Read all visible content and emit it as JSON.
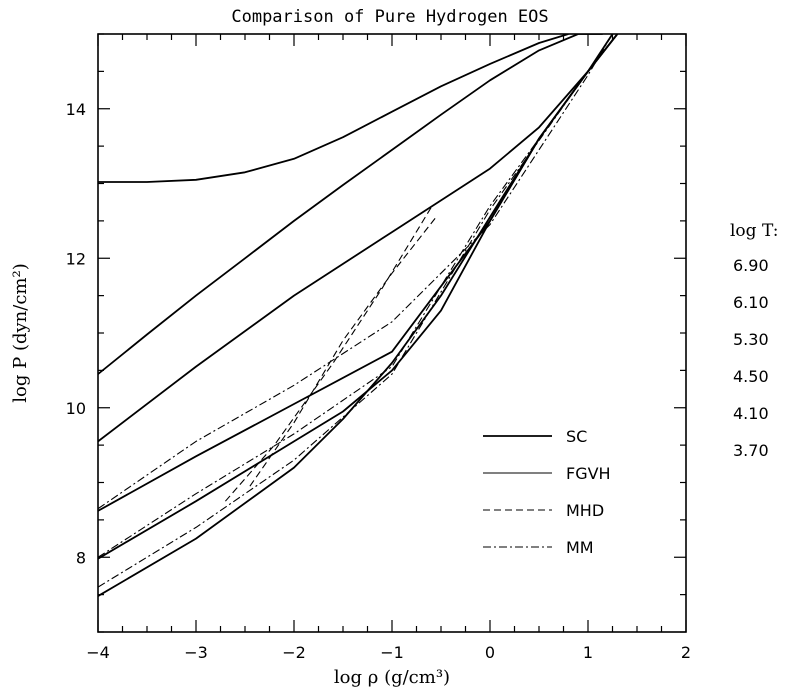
{
  "chart_data": {
    "type": "line",
    "title": "Comparison of Pure Hydrogen EOS",
    "xlabel": "log ρ (g/cm³)",
    "ylabel": "log P (dyn/cm²)",
    "xlim": [
      -4,
      2
    ],
    "ylim": [
      7,
      15
    ],
    "xticks": [
      -4,
      -3,
      -2,
      -1,
      0,
      1,
      2
    ],
    "xtick_labels": [
      "−4",
      "−3",
      "−2",
      "−1",
      "0",
      "1",
      "2"
    ],
    "yticks": [
      8,
      10,
      12,
      14
    ],
    "ytick_labels": [
      "8",
      "10",
      "12",
      "14"
    ],
    "grid": false,
    "legend": {
      "placement": "lower-right",
      "entries": [
        {
          "label": "SC",
          "dash": "solid",
          "weight": "heavy"
        },
        {
          "label": "FGVH",
          "dash": "solid",
          "weight": "light"
        },
        {
          "label": "MHD",
          "dash": "dashed",
          "weight": "light"
        },
        {
          "label": "MM",
          "dash": "dashdot",
          "weight": "light"
        }
      ]
    },
    "temperature_header": "log T:",
    "temperatures": [
      "6.90",
      "6.10",
      "5.30",
      "4.50",
      "4.10",
      "3.70"
    ],
    "series": [
      {
        "name": "SC",
        "logT": "6.90",
        "dash": "solid",
        "weight": "heavy",
        "x": [
          -4,
          -3.5,
          -3,
          -2.5,
          -2,
          -1.5,
          -1,
          -0.5,
          0,
          0.5,
          0.8
        ],
        "y": [
          13.02,
          13.02,
          13.05,
          13.15,
          13.33,
          13.62,
          13.96,
          14.3,
          14.6,
          14.88,
          15.0
        ]
      },
      {
        "name": "SC",
        "logT": "6.10",
        "dash": "solid",
        "weight": "heavy",
        "x": [
          -4,
          -3.5,
          -3,
          -2.5,
          -2,
          -1.5,
          -1,
          -0.5,
          0,
          0.5,
          0.9,
          1.15
        ],
        "y": [
          10.45,
          10.98,
          11.5,
          12.0,
          12.5,
          12.98,
          13.45,
          13.92,
          14.38,
          14.78,
          15.0,
          15.0
        ]
      },
      {
        "name": "SC",
        "logT": "5.30",
        "dash": "solid",
        "weight": "heavy",
        "x": [
          -4,
          -3,
          -2,
          -1,
          0,
          0.5,
          1.0,
          1.25
        ],
        "y": [
          9.55,
          10.55,
          11.5,
          12.35,
          13.2,
          13.75,
          14.5,
          15.0
        ]
      },
      {
        "name": "SC",
        "logT": "4.50",
        "dash": "solid",
        "weight": "heavy",
        "x": [
          -4,
          -3,
          -2,
          -1,
          0,
          0.5,
          1.0,
          1.3
        ],
        "y": [
          8.62,
          9.35,
          10.05,
          10.75,
          12.5,
          13.6,
          14.5,
          15.0
        ]
      },
      {
        "name": "SC",
        "logT": "4.10",
        "dash": "solid",
        "weight": "heavy",
        "x": [
          -4,
          -3,
          -2,
          -1.5,
          -1,
          -0.5,
          0,
          0.5,
          1.0,
          1.3
        ],
        "y": [
          7.98,
          8.75,
          9.55,
          9.95,
          10.5,
          11.3,
          12.5,
          13.6,
          14.5,
          15.0
        ]
      },
      {
        "name": "SC",
        "logT": "3.70",
        "dash": "solid",
        "weight": "heavy",
        "x": [
          -4,
          -3,
          -2,
          -1.5,
          -1,
          -0.5,
          0,
          0.5,
          1.0,
          1.3
        ],
        "y": [
          7.48,
          8.25,
          9.2,
          9.85,
          10.6,
          11.5,
          12.55,
          13.6,
          14.5,
          15.0
        ]
      },
      {
        "name": "MHD",
        "logT": "4.50",
        "dash": "dashed",
        "weight": "light",
        "x": [
          -2.45,
          -2.0,
          -1.5,
          -1.0,
          -0.55
        ],
        "y": [
          8.95,
          9.8,
          10.9,
          11.8,
          12.55
        ]
      },
      {
        "name": "MHD",
        "logT": "4.10",
        "dash": "dashed",
        "weight": "light",
        "x": [
          -2.7,
          -2.2,
          -1.6,
          -1.1,
          -0.6
        ],
        "y": [
          8.75,
          9.5,
          10.6,
          11.6,
          12.68
        ]
      },
      {
        "name": "MM",
        "logT": "5.30",
        "dash": "dashdot",
        "weight": "light",
        "x": [
          -4,
          -3,
          -2,
          -1,
          0,
          1.0,
          1.25
        ],
        "y": [
          8.65,
          9.55,
          10.3,
          11.15,
          12.45,
          14.45,
          15.0
        ]
      },
      {
        "name": "MM",
        "logT": "4.50",
        "dash": "dashdot",
        "weight": "light",
        "x": [
          -4,
          -3,
          -2,
          -1,
          0,
          1.0,
          1.3
        ],
        "y": [
          8.0,
          8.85,
          9.65,
          10.55,
          12.7,
          14.5,
          15.0
        ]
      },
      {
        "name": "MM",
        "logT": "3.70",
        "dash": "dashdot",
        "weight": "light",
        "x": [
          -4,
          -3,
          -2,
          -1,
          0,
          1.0,
          1.3
        ],
        "y": [
          7.6,
          8.4,
          9.3,
          10.45,
          12.65,
          14.5,
          15.0
        ]
      }
    ]
  }
}
